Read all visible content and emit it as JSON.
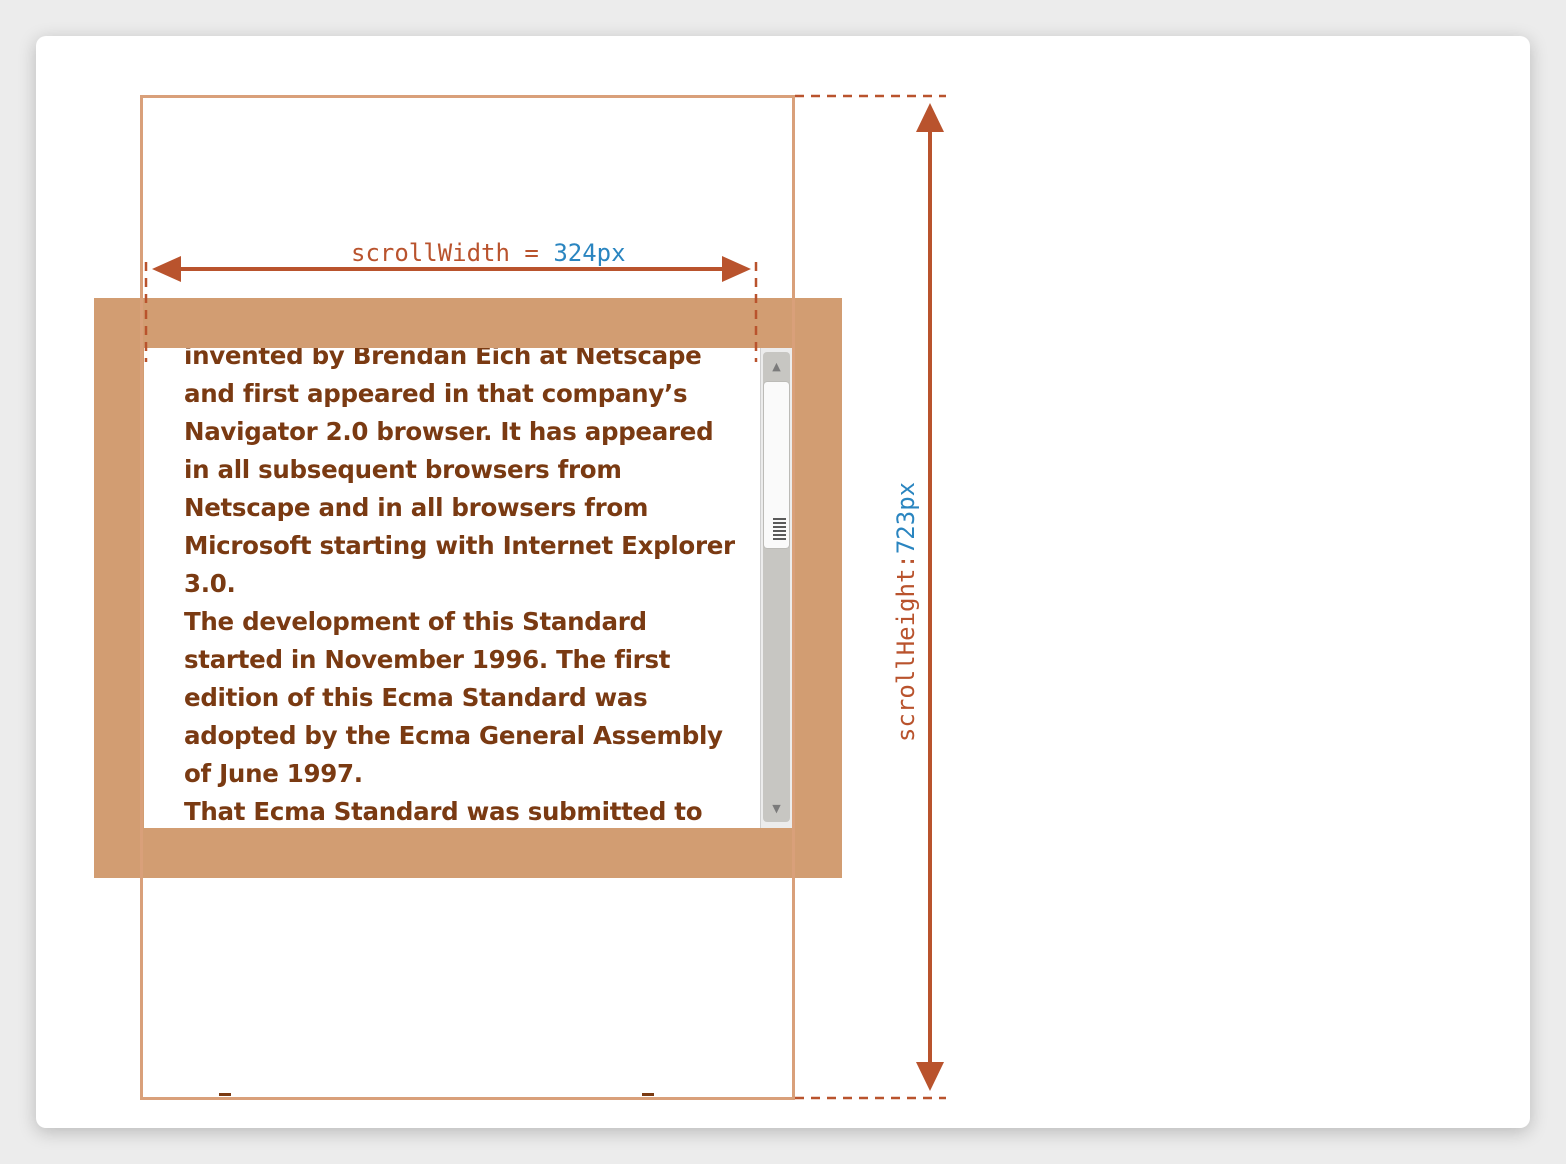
{
  "diagram": {
    "scroll_width_label": {
      "name": "scrollWidth",
      "operator": " = ",
      "value": "324px"
    },
    "scroll_height_label": {
      "name": "scrollHeight:",
      "value": "723px"
    },
    "content_lines": [
      "invented by Brendan Eich at Netscape",
      "and first appeared in that company’s",
      "Navigator 2.0 browser. It has appeared",
      "in all subsequent browsers from",
      "Netscape and in all browsers from",
      "Microsoft starting with Internet Explorer",
      "3.0.",
      "The development of this Standard",
      "started in November 1996. The first",
      "edition of this Ecma Standard was",
      "adopted by the Ecma General Assembly",
      "of June 1997.",
      "That Ecma Standard was submitted to"
    ],
    "colors": {
      "arrow": "#b9532d",
      "label_name": "#b9532d",
      "label_value": "#2a85c0",
      "element_border": "#d29d72",
      "outline": "#d9a07a",
      "text": "#7a3a12"
    },
    "scrollbar": {
      "up_icon": "▲",
      "down_icon": "▼"
    }
  }
}
